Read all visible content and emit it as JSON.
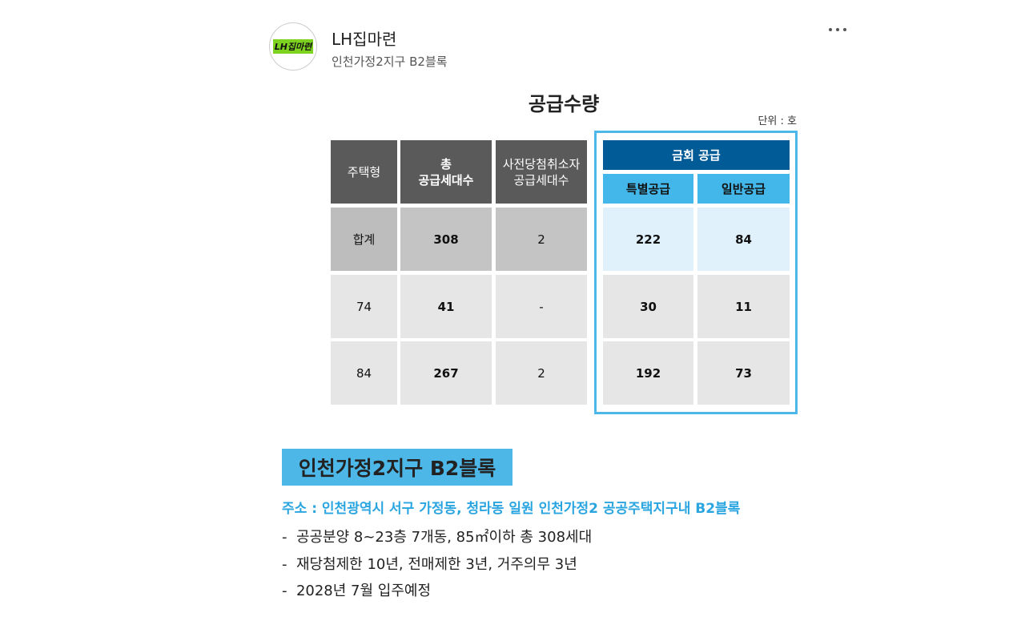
{
  "header": {
    "logo_text": "LH집마련",
    "name": "LH집마련",
    "subtitle": "인천가정2지구 B2블록"
  },
  "table": {
    "title": "공급수량",
    "unit": "단위 : 호",
    "headers": [
      [
        "주택형"
      ],
      [
        "총",
        "공급세대수"
      ],
      [
        "사전당첨취소자",
        "공급세대수"
      ]
    ],
    "group_header": "금회 공급",
    "sub_headers": [
      "특별공급",
      "일반공급"
    ],
    "rows": [
      [
        "합계",
        308,
        2,
        222,
        84
      ],
      [
        74,
        41,
        "-",
        30,
        11
      ],
      [
        84,
        267,
        2,
        192,
        73
      ]
    ]
  },
  "section": {
    "heading": "인천가정2지구 B2블록",
    "address": "주소 : 인천광역시 서구 가정동, 청라동 일원 인천가정2 공공주택지구내 B2블록",
    "items": [
      "-  공공분양 8~23층 7개동, 85㎡이하 총 308세대",
      "-  재당첨제한 10년, 전매제한 3년, 거주의무 3년",
      "-  2028년 7월 입주예정"
    ]
  }
}
